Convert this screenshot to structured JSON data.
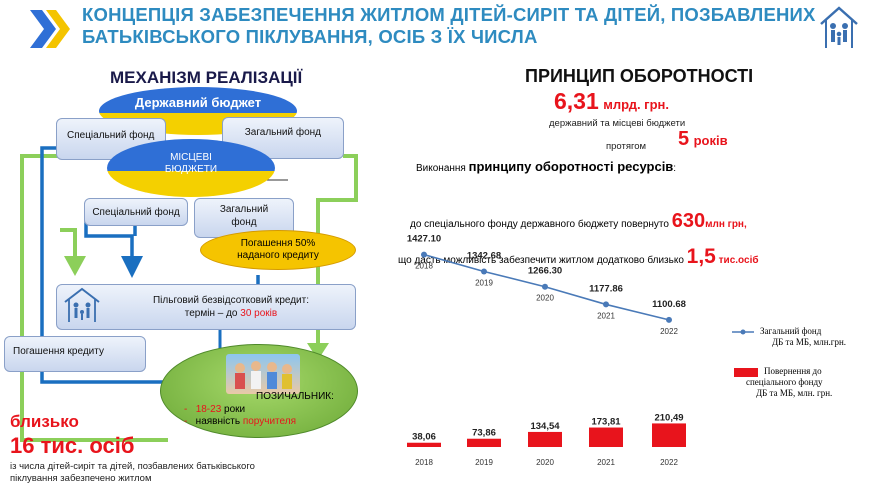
{
  "title_line1": "КОНЦЕПЦІЯ ЗАБЕЗПЕЧЕННЯ ЖИТЛОМ ДІТЕЙ-СИРІТ ТА ДІТЕЙ, ПОЗБАВЛЕНИХ",
  "title_line2": "БАТЬКІВСЬКОГО ПІКЛУВАННЯ, ОСІБ З ЇХ ЧИСЛА",
  "left": {
    "heading": "МЕХАНІЗМ РЕАЛІЗАЦІЇ",
    "state_budget": "Державний бюджет",
    "special_fund_1": "Спеціальний фонд",
    "general_fund_1": "Загальний фонд",
    "local_budgets_l1": "МІСЦЕВІ",
    "local_budgets_l2": "БЮДЖЕТИ",
    "special_fund_2": "Спеціальний фонд",
    "general_fund_2_l1": "Загальний",
    "general_fund_2_l2": "фонд",
    "repay50_l1": "Погашення  50%",
    "repay50_l2": "наданого кредиту",
    "credit_l1": "Пільговий безвідсотковий кредит:",
    "credit_l2_pre": "термін – до ",
    "credit_l2_val": "30 років",
    "loan_repay": "Погашення кредиту",
    "borrower": "ПОЗИЧАЛЬНИК:",
    "borrower_age": "18-23",
    "borrower_age_suffix": " роки",
    "borrower_guarantor": "наявність поручителя",
    "about": "близько",
    "count": "16 тис. осіб",
    "note_l1": "із числа дітей-сиріт та дітей, позбавлених батьківського",
    "note_l2": "піклування забезпечено житлом"
  },
  "right": {
    "heading": "ПРИНЦИП ОБОРОТНОСТІ",
    "amount": "6,31",
    "amount_unit": "млрд. грн.",
    "amount_desc": "державний та місцеві бюджети",
    "during": "протягом",
    "years": "5",
    "years_unit": "років",
    "execution_pre": "Виконання ",
    "execution_bold": "принципу оборотності ресурсів",
    "execution_post": ":",
    "return_pre": "до спеціального фонду державного бюджету повернуто ",
    "return_val": "630",
    "return_unit": "млн грн,",
    "extra_pre": "що дасть можливість забезпечити житлом додатково близько ",
    "extra_val": "1,5",
    "extra_unit": "тис.осіб"
  },
  "chart_data": [
    {
      "type": "line",
      "x": [
        "2018",
        "2019",
        "2020",
        "2021",
        "2022"
      ],
      "series": [
        {
          "name": "Загальний фонд ДБ та МБ, млн.грн.",
          "values": [
            1427.1,
            1342.68,
            1266.3,
            1177.86,
            1100.68
          ]
        }
      ],
      "data_labels": [
        "1427.10",
        "1342.68",
        "1266.30",
        "1177.86",
        "1100.68"
      ],
      "legend_l1": "Загальний фонд",
      "legend_l2": "ДБ та МБ, млн.грн.",
      "color": "#4a7ab8",
      "ylim": [
        1000,
        1500
      ]
    },
    {
      "type": "bar",
      "categories": [
        "2018",
        "2019",
        "2020",
        "2021",
        "2022"
      ],
      "series": [
        {
          "name": "Повернення до спеціального фонду ДБ та МБ, млн. грн.",
          "values": [
            38.06,
            73.86,
            134.54,
            173.81,
            210.49
          ]
        }
      ],
      "data_labels": [
        "38,06",
        "73,86",
        "134,54",
        "173,81",
        "210,49"
      ],
      "legend_l1": "Повернення до",
      "legend_l2": "спеціального фонду",
      "legend_l3": "ДБ та МБ, млн. грн.",
      "color": "#e8141c",
      "ylim": [
        0,
        250
      ]
    }
  ],
  "colors": {
    "title": "#2e8bc0",
    "accent_red": "#e8141c",
    "arrow_blue": "#1a6fc0",
    "arrow_green": "#8ccf5a",
    "flag_blue": "#2f6fd6",
    "flag_yellow": "#f4d000"
  }
}
